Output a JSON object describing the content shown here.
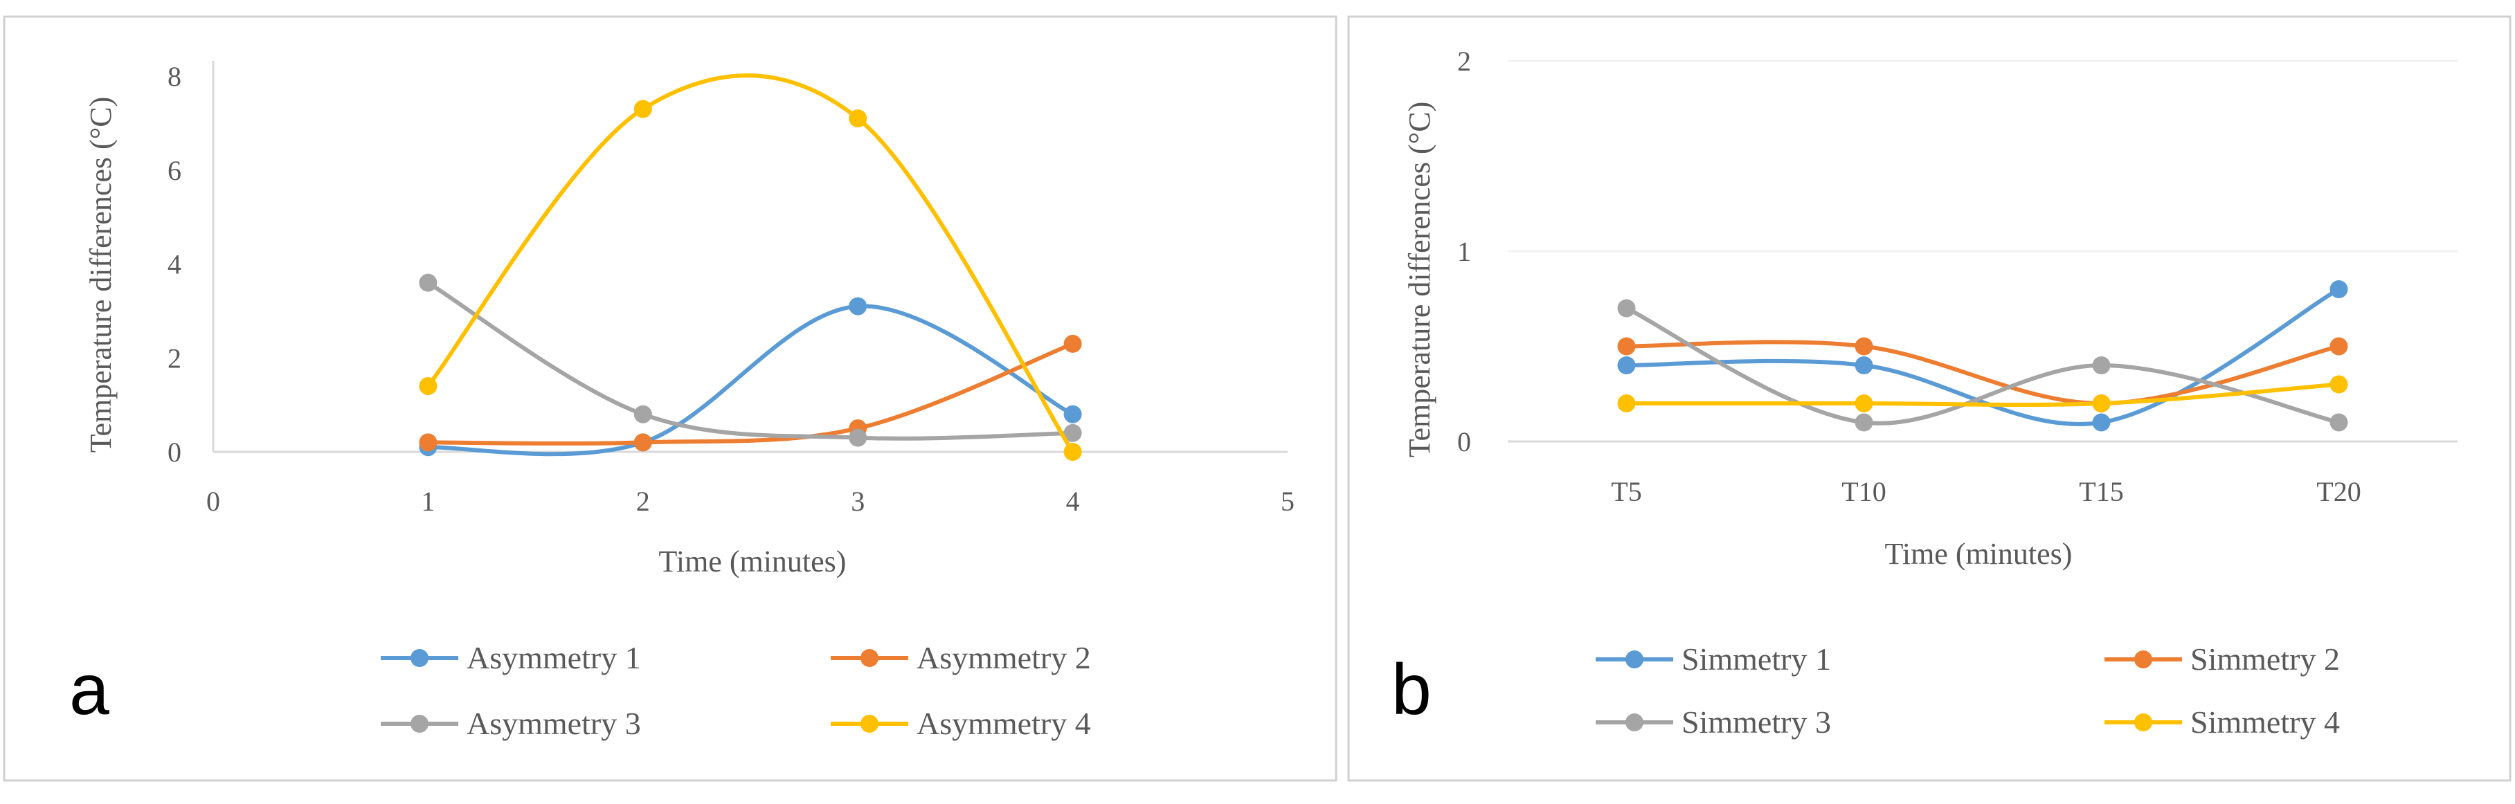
{
  "chart_data": [
    {
      "panel_label": "a",
      "type": "line",
      "smooth": true,
      "xlabel": "Time (minutes)",
      "ylabel": "Temperature differences (°C)",
      "xlim": [
        0,
        5
      ],
      "ylim": [
        0,
        8
      ],
      "x_ticks": [
        "0",
        "1",
        "2",
        "3",
        "4",
        "5"
      ],
      "y_ticks": [
        "0",
        "2",
        "4",
        "6",
        "8"
      ],
      "grid": false,
      "legend_position": "bottom",
      "x": [
        1,
        2,
        3,
        4
      ],
      "series": [
        {
          "name": "Asymmetry 1",
          "color": "#5B9BD5",
          "values": [
            0.1,
            0.2,
            3.1,
            0.8
          ]
        },
        {
          "name": "Asymmetry 2",
          "color": "#ED7D31",
          "values": [
            0.2,
            0.2,
            0.5,
            2.3
          ]
        },
        {
          "name": "Asymmetry 3",
          "color": "#A5A5A5",
          "values": [
            3.6,
            0.8,
            0.3,
            0.4
          ]
        },
        {
          "name": "Asymmetry 4",
          "color": "#FFC000",
          "values": [
            1.4,
            7.3,
            7.1,
            0.0
          ]
        }
      ]
    },
    {
      "panel_label": "b",
      "type": "line",
      "smooth": true,
      "xlabel": "Time (minutes)",
      "ylabel": "Temperature differences (°C)",
      "ylim": [
        0,
        2
      ],
      "categories": [
        "T5",
        "T10",
        "T15",
        "T20"
      ],
      "y_ticks": [
        "0",
        "1",
        "2"
      ],
      "grid": true,
      "legend_position": "bottom",
      "series": [
        {
          "name": "Simmetry 1",
          "color": "#5B9BD5",
          "values": [
            0.4,
            0.4,
            0.1,
            0.8
          ]
        },
        {
          "name": "Simmetry 2",
          "color": "#ED7D31",
          "values": [
            0.5,
            0.5,
            0.2,
            0.5
          ]
        },
        {
          "name": "Simmetry 3",
          "color": "#A5A5A5",
          "values": [
            0.7,
            0.1,
            0.4,
            0.1
          ]
        },
        {
          "name": "Simmetry 4",
          "color": "#FFC000",
          "values": [
            0.2,
            0.2,
            0.2,
            0.3
          ]
        }
      ]
    }
  ]
}
